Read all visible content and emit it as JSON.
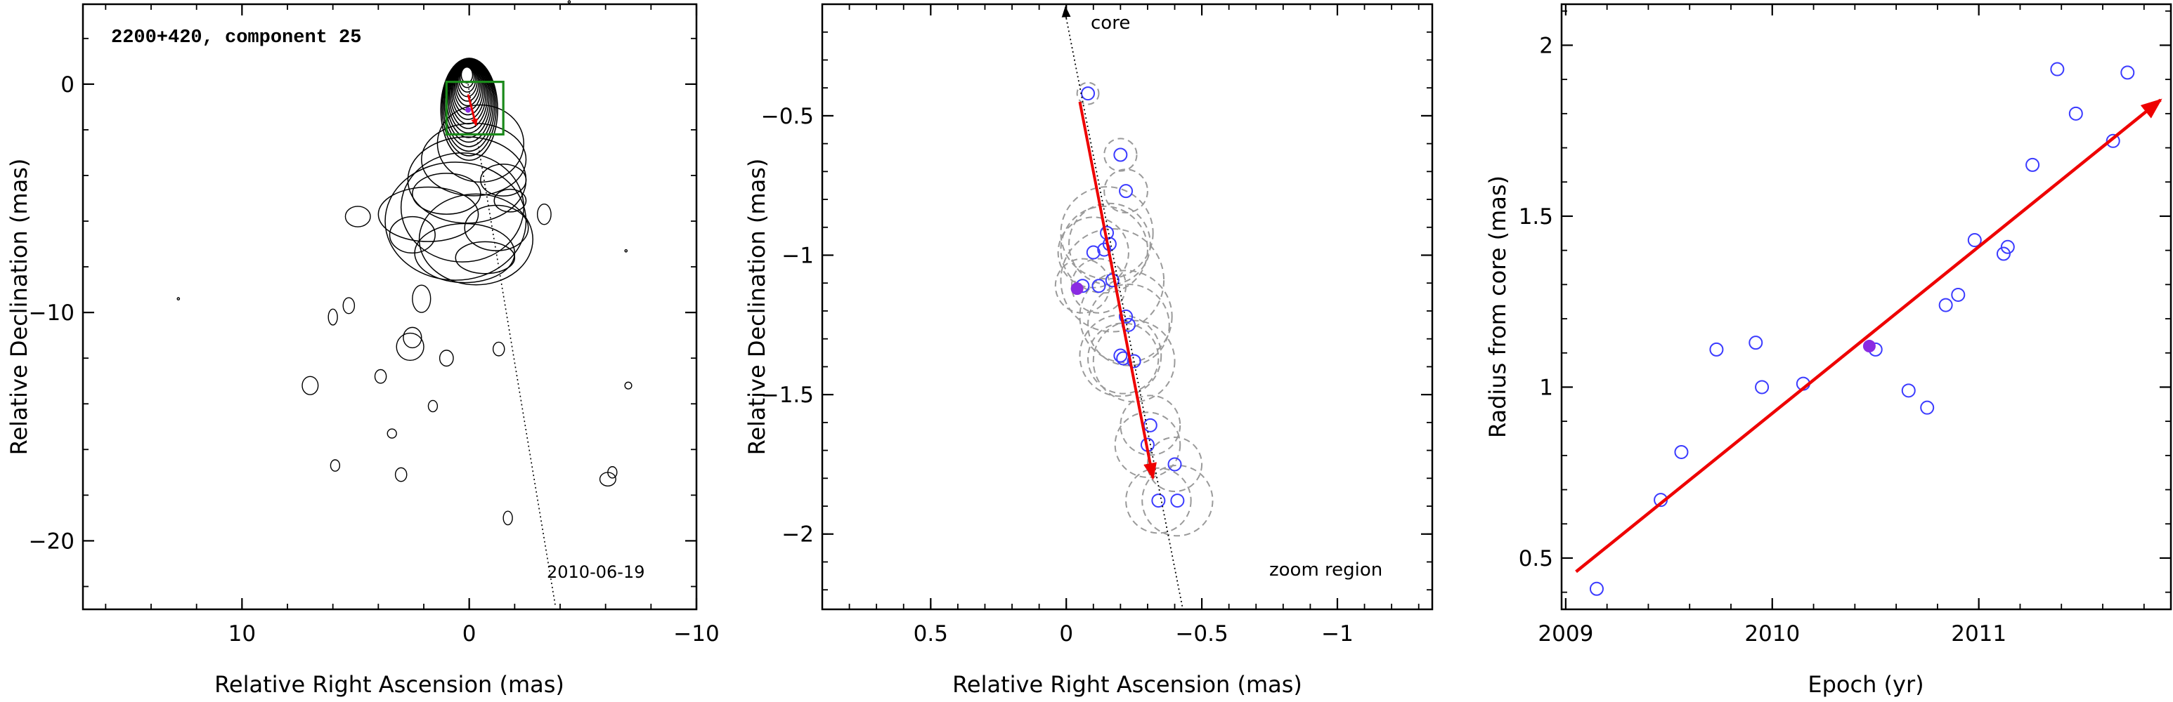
{
  "chart_data": [
    {
      "type": "contour",
      "title": "2200+420, component 25",
      "xlabel": "Relative Right Ascension (mas)",
      "ylabel": "Relative Declination (mas)",
      "xlim": [
        17,
        -10
      ],
      "ylim": [
        -23,
        3.5
      ],
      "xticks": [
        10,
        0,
        -10
      ],
      "yticks": [
        0,
        -10,
        -20
      ],
      "annotation": "2010-06-19",
      "zoom_box": {
        "x": [
          1,
          -1.5
        ],
        "y": [
          0.1,
          -2.2
        ]
      },
      "component": {
        "x": 0.05,
        "y": -1.13
      },
      "motion_vector": {
        "from": [
          0.05,
          -0.45
        ],
        "to": [
          -0.3,
          -1.8
        ]
      },
      "jet_axis": {
        "from": [
          0.05,
          0
        ],
        "to": [
          -3.8,
          -22.9
        ]
      }
    },
    {
      "type": "scatter",
      "xlabel": "Relative Right Ascension (mas)",
      "ylabel": "Relative Declination (mas)",
      "xlim": [
        0.9,
        -1.35
      ],
      "ylim": [
        -2.27,
        -0.1
      ],
      "xticks": [
        0.5,
        0,
        -0.5,
        -1
      ],
      "yticks": [
        -0.5,
        -1,
        -1.5,
        -2
      ],
      "labels": {
        "core": "core",
        "region": "zoom region"
      },
      "points": [
        {
          "x": -0.08,
          "y": -0.42,
          "r": 0.04
        },
        {
          "x": -0.2,
          "y": -0.64,
          "r": 0.06
        },
        {
          "x": -0.22,
          "y": -0.77,
          "r": 0.08
        },
        {
          "x": -0.15,
          "y": -0.92,
          "r": 0.17
        },
        {
          "x": -0.16,
          "y": -0.96,
          "r": 0.15
        },
        {
          "x": -0.14,
          "y": -0.98,
          "r": 0.16
        },
        {
          "x": -0.1,
          "y": -0.99,
          "r": 0.13
        },
        {
          "x": -0.17,
          "y": -1.09,
          "r": 0.19
        },
        {
          "x": -0.12,
          "y": -1.11,
          "r": 0.1
        },
        {
          "x": -0.06,
          "y": -1.11,
          "r": 0.1
        },
        {
          "x": -0.22,
          "y": -1.22,
          "r": 0.17
        },
        {
          "x": -0.23,
          "y": -1.25,
          "r": 0.15
        },
        {
          "x": -0.2,
          "y": -1.36,
          "r": 0.15
        },
        {
          "x": -0.21,
          "y": -1.37,
          "r": 0.13
        },
        {
          "x": -0.25,
          "y": -1.38,
          "r": 0.15
        },
        {
          "x": -0.31,
          "y": -1.61,
          "r": 0.11
        },
        {
          "x": -0.3,
          "y": -1.68,
          "r": 0.12
        },
        {
          "x": -0.4,
          "y": -1.75,
          "r": 0.1
        },
        {
          "x": -0.34,
          "y": -1.88,
          "r": 0.12
        },
        {
          "x": -0.41,
          "y": -1.88,
          "r": 0.13
        }
      ],
      "highlight": {
        "x": -0.04,
        "y": -1.12
      },
      "motion_vector": {
        "from": [
          -0.05,
          -0.45
        ],
        "to": [
          -0.32,
          -1.8
        ]
      },
      "jet_axis": {
        "from": [
          0,
          -0.15
        ],
        "to": [
          -0.43,
          -2.27
        ]
      }
    },
    {
      "type": "scatter",
      "xlabel": "Epoch (yr)",
      "ylabel": "Radius from core (mas)",
      "xlim": [
        2008.98,
        2011.93
      ],
      "ylim": [
        0.35,
        2.12
      ],
      "xticks": [
        2009,
        2010,
        2011
      ],
      "yticks": [
        0.5,
        1,
        1.5,
        2
      ],
      "points": [
        {
          "x": 2009.15,
          "y": 0.41
        },
        {
          "x": 2009.46,
          "y": 0.67
        },
        {
          "x": 2009.56,
          "y": 0.81
        },
        {
          "x": 2009.73,
          "y": 1.11
        },
        {
          "x": 2009.92,
          "y": 1.13
        },
        {
          "x": 2009.95,
          "y": 1.0
        },
        {
          "x": 2010.15,
          "y": 1.01
        },
        {
          "x": 2010.5,
          "y": 1.11
        },
        {
          "x": 2010.66,
          "y": 0.99
        },
        {
          "x": 2010.75,
          "y": 0.94
        },
        {
          "x": 2010.84,
          "y": 1.24
        },
        {
          "x": 2010.9,
          "y": 1.27
        },
        {
          "x": 2010.98,
          "y": 1.43
        },
        {
          "x": 2011.12,
          "y": 1.39
        },
        {
          "x": 2011.14,
          "y": 1.41
        },
        {
          "x": 2011.26,
          "y": 1.65
        },
        {
          "x": 2011.38,
          "y": 1.93
        },
        {
          "x": 2011.47,
          "y": 1.8
        },
        {
          "x": 2011.65,
          "y": 1.72
        },
        {
          "x": 2011.72,
          "y": 1.92
        }
      ],
      "highlight": {
        "x": 2010.47,
        "y": 1.12
      },
      "fit_line": {
        "from": [
          2009.05,
          0.46
        ],
        "to": [
          2011.88,
          1.84
        ]
      }
    }
  ]
}
